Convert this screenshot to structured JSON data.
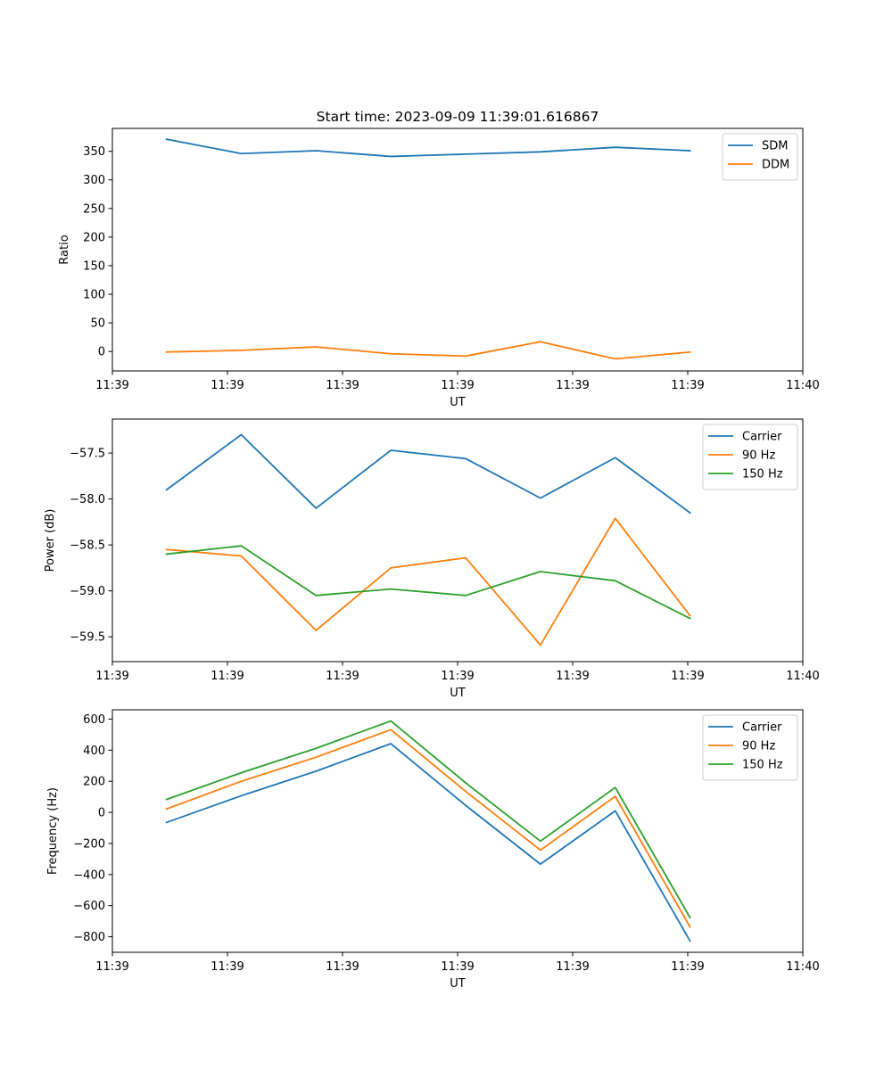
{
  "figure": {
    "title": "Start time: 2023-09-09 11:39:01.616867"
  },
  "chart_data": [
    {
      "type": "line",
      "ylabel": "Ratio",
      "xlabel": "UT",
      "ylim": [
        -34,
        390
      ],
      "yticks": [
        0,
        50,
        100,
        150,
        200,
        250,
        300,
        350
      ],
      "xlim": [
        0.0,
        6.0
      ],
      "xticks": [
        0.0,
        1.0,
        2.0,
        3.0,
        4.0,
        5.0,
        6.0
      ],
      "xtick_labels": [
        "11:39",
        "11:39",
        "11:39",
        "11:39",
        "11:39",
        "11:39",
        "11:40"
      ],
      "x": [
        0.47,
        1.12,
        1.77,
        2.42,
        3.07,
        3.72,
        4.37,
        5.02
      ],
      "legend_position": "upper right",
      "series": [
        {
          "name": "SDM",
          "color": "#1f77b4",
          "values": [
            371,
            346,
            351,
            341,
            345,
            349,
            357,
            351
          ]
        },
        {
          "name": "DDM",
          "color": "#ff7f0e",
          "values": [
            -1,
            2,
            8,
            -4,
            -8,
            17,
            -13,
            -1
          ]
        }
      ]
    },
    {
      "type": "line",
      "ylabel": "Power (dB)",
      "xlabel": "UT",
      "ylim": [
        -59.77,
        -57.13
      ],
      "yticks": [
        -59.5,
        -59.0,
        -58.5,
        -58.0,
        -57.5
      ],
      "ytick_labels": [
        "−59.5",
        "−59.0",
        "−58.5",
        "−58.0",
        "−57.5"
      ],
      "xlim": [
        0.0,
        6.0
      ],
      "xticks": [
        0.0,
        1.0,
        2.0,
        3.0,
        4.0,
        5.0,
        6.0
      ],
      "xtick_labels": [
        "11:39",
        "11:39",
        "11:39",
        "11:39",
        "11:39",
        "11:39",
        "11:40"
      ],
      "x": [
        0.47,
        1.12,
        1.77,
        2.42,
        3.07,
        3.72,
        4.37,
        5.02
      ],
      "legend_position": "upper right",
      "series": [
        {
          "name": "Carrier",
          "color": "#1f77b4",
          "values": [
            -57.9,
            -57.3,
            -58.1,
            -57.47,
            -57.56,
            -57.99,
            -57.55,
            -58.15
          ]
        },
        {
          "name": "90 Hz",
          "color": "#ff7f0e",
          "values": [
            -58.55,
            -58.62,
            -59.43,
            -58.75,
            -58.64,
            -59.59,
            -58.21,
            -59.27
          ]
        },
        {
          "name": "150 Hz",
          "color": "#2ca02c",
          "values": [
            -58.6,
            -58.51,
            -59.05,
            -58.98,
            -59.05,
            -58.79,
            -58.89,
            -59.3
          ]
        }
      ]
    },
    {
      "type": "line",
      "ylabel": "Frequency (Hz)",
      "xlabel": "UT",
      "ylim": [
        -900,
        660
      ],
      "yticks": [
        -800,
        -600,
        -400,
        -200,
        0,
        200,
        400,
        600
      ],
      "ytick_labels": [
        "−800",
        "−600",
        "−400",
        "−200",
        "0",
        "200",
        "400",
        "600"
      ],
      "xlim": [
        0.0,
        6.0
      ],
      "xticks": [
        0.0,
        1.0,
        2.0,
        3.0,
        4.0,
        5.0,
        6.0
      ],
      "xtick_labels": [
        "11:39",
        "11:39",
        "11:39",
        "11:39",
        "11:39",
        "11:39",
        "11:40"
      ],
      "x": [
        0.47,
        1.12,
        1.77,
        2.42,
        3.07,
        3.72,
        4.37,
        5.02
      ],
      "legend_position": "upper right",
      "series": [
        {
          "name": "Carrier",
          "color": "#1f77b4",
          "values": [
            -65,
            107,
            265,
            442,
            45,
            -333,
            10,
            -827
          ]
        },
        {
          "name": "90 Hz",
          "color": "#ff7f0e",
          "values": [
            22,
            200,
            355,
            532,
            135,
            -243,
            103,
            -737
          ]
        },
        {
          "name": "150 Hz",
          "color": "#2ca02c",
          "values": [
            83,
            255,
            412,
            588,
            190,
            -185,
            160,
            -677
          ]
        }
      ]
    }
  ]
}
